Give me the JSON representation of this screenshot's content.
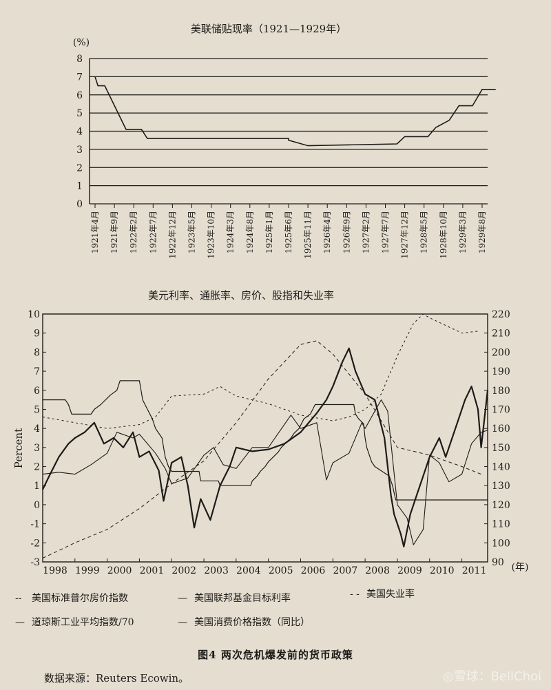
{
  "chart_data": [
    {
      "type": "line",
      "title": "美联储贴现率（1921—1929年）",
      "ylabel": "(%)",
      "ylim": [
        0,
        8
      ],
      "yticks": [
        0,
        1,
        2,
        3,
        4,
        5,
        6,
        7,
        8
      ],
      "categories": [
        "1921年4月",
        "1921年9月",
        "1922年2月",
        "1922年7月",
        "1922年12月",
        "1923年5月",
        "1923年10月",
        "1924年3月",
        "1924年8月",
        "1925年1月",
        "1925年6月",
        "1925年11月",
        "1926年4月",
        "1926年9月",
        "1927年2月",
        "1927年7月",
        "1927年12月",
        "1928年5月",
        "1928年10月",
        "1929年3月",
        "1929年8月"
      ],
      "series": [
        {
          "name": "贴现率",
          "points": [
            [
              0,
              7.0
            ],
            [
              0.15,
              6.5
            ],
            [
              0.5,
              6.5
            ],
            [
              1.6,
              4.1
            ],
            [
              2.4,
              4.1
            ],
            [
              2.7,
              3.6
            ],
            [
              10.0,
              3.6
            ],
            [
              10.0,
              3.5
            ],
            [
              11.0,
              3.2
            ],
            [
              15.6,
              3.3
            ],
            [
              16.0,
              3.7
            ],
            [
              17.2,
              3.7
            ],
            [
              17.6,
              4.2
            ],
            [
              18.3,
              4.6
            ],
            [
              18.8,
              5.4
            ],
            [
              19.5,
              5.4
            ],
            [
              20.0,
              6.3
            ],
            [
              20.7,
              6.3
            ]
          ]
        }
      ]
    },
    {
      "type": "line",
      "title": "美元利率、通胀率、房价、股指和失业率",
      "ylabel": "Percent",
      "xlabel": "(年)",
      "ylim": [
        -3,
        10
      ],
      "y2lim": [
        90,
        220
      ],
      "xlim": [
        1998,
        2011.8
      ],
      "xticks": [
        "1998",
        "1999",
        "2000",
        "2001",
        "2002",
        "2003",
        "2004",
        "2005",
        "2006",
        "2007",
        "2008",
        "2009",
        "2010",
        "2011"
      ],
      "yticks_left": [
        -3,
        -2,
        -1,
        0,
        1,
        2,
        3,
        4,
        5,
        6,
        7,
        8,
        9,
        10
      ],
      "yticks_right": [
        90,
        100,
        110,
        120,
        130,
        140,
        150,
        160,
        170,
        180,
        190,
        200,
        210,
        220
      ],
      "series": [
        {
          "name": "美国标准普尔房价指数",
          "axis": "right",
          "points": [
            [
              1998,
              92
            ],
            [
              1999,
              100
            ],
            [
              2000,
              107
            ],
            [
              2001,
              118
            ],
            [
              2002,
              131
            ],
            [
              2003,
              143
            ],
            [
              2004,
              163
            ],
            [
              2005,
              186
            ],
            [
              2006,
              204
            ],
            [
              2006.5,
              206
            ],
            [
              2007,
              199
            ],
            [
              2008,
              178
            ],
            [
              2009,
              150
            ],
            [
              2010,
              146
            ],
            [
              2011,
              140
            ],
            [
              2011.6,
              136
            ]
          ]
        },
        {
          "name": "美国联邦基金目标利率",
          "axis": "left",
          "points": [
            [
              1998,
              5.5
            ],
            [
              1998.7,
              5.5
            ],
            [
              1998.8,
              5.25
            ],
            [
              1998.9,
              4.75
            ],
            [
              1999.5,
              4.75
            ],
            [
              1999.6,
              5.0
            ],
            [
              1999.8,
              5.25
            ],
            [
              2000.1,
              5.75
            ],
            [
              2000.3,
              6.0
            ],
            [
              2000.4,
              6.5
            ],
            [
              2001.0,
              6.5
            ],
            [
              2001.05,
              6.0
            ],
            [
              2001.1,
              5.5
            ],
            [
              2001.25,
              5.0
            ],
            [
              2001.4,
              4.5
            ],
            [
              2001.5,
              4.0
            ],
            [
              2001.6,
              3.75
            ],
            [
              2001.7,
              3.5
            ],
            [
              2001.75,
              3.0
            ],
            [
              2001.8,
              2.5
            ],
            [
              2001.9,
              2.0
            ],
            [
              2002.0,
              1.75
            ],
            [
              2002.85,
              1.75
            ],
            [
              2002.9,
              1.25
            ],
            [
              2003.45,
              1.25
            ],
            [
              2003.5,
              1.0
            ],
            [
              2004.45,
              1.0
            ],
            [
              2004.5,
              1.25
            ],
            [
              2004.65,
              1.5
            ],
            [
              2004.75,
              1.75
            ],
            [
              2004.9,
              2.0
            ],
            [
              2005.0,
              2.25
            ],
            [
              2005.15,
              2.5
            ],
            [
              2005.3,
              2.75
            ],
            [
              2005.4,
              3.0
            ],
            [
              2005.55,
              3.25
            ],
            [
              2005.7,
              3.5
            ],
            [
              2005.8,
              3.75
            ],
            [
              2005.95,
              4.0
            ],
            [
              2006.1,
              4.5
            ],
            [
              2006.3,
              4.75
            ],
            [
              2006.45,
              5.25
            ],
            [
              2007.65,
              5.25
            ],
            [
              2007.7,
              4.75
            ],
            [
              2007.8,
              4.5
            ],
            [
              2007.95,
              4.25
            ],
            [
              2008.0,
              3.5
            ],
            [
              2008.05,
              3.0
            ],
            [
              2008.2,
              2.25
            ],
            [
              2008.3,
              2.0
            ],
            [
              2008.75,
              1.5
            ],
            [
              2008.85,
              1.0
            ],
            [
              2008.95,
              0.25
            ],
            [
              2011.8,
              0.25
            ]
          ]
        },
        {
          "name": "美国失业率",
          "axis": "left",
          "points": [
            [
              1998,
              4.6
            ],
            [
              1999,
              4.3
            ],
            [
              2000,
              4.0
            ],
            [
              2001,
              4.2
            ],
            [
              2001.5,
              4.6
            ],
            [
              2002,
              5.7
            ],
            [
              2003,
              5.8
            ],
            [
              2003.5,
              6.2
            ],
            [
              2004,
              5.7
            ],
            [
              2005,
              5.3
            ],
            [
              2006,
              4.7
            ],
            [
              2007,
              4.4
            ],
            [
              2007.5,
              4.6
            ],
            [
              2008,
              5.0
            ],
            [
              2008.5,
              5.8
            ],
            [
              2009,
              7.8
            ],
            [
              2009.5,
              9.5
            ],
            [
              2009.8,
              10.0
            ],
            [
              2010,
              9.8
            ],
            [
              2010.5,
              9.4
            ],
            [
              2011,
              9.0
            ],
            [
              2011.5,
              9.1
            ]
          ]
        },
        {
          "name": "道琼斯工业平均指数/70",
          "axis": "left",
          "points": [
            [
              1998,
              0.8
            ],
            [
              1998.2,
              1.5
            ],
            [
              1998.5,
              2.5
            ],
            [
              1998.8,
              3.2
            ],
            [
              1999.0,
              3.5
            ],
            [
              1999.3,
              3.8
            ],
            [
              1999.6,
              4.3
            ],
            [
              1999.9,
              3.2
            ],
            [
              2000.2,
              3.5
            ],
            [
              2000.5,
              3.0
            ],
            [
              2000.8,
              3.8
            ],
            [
              2001.0,
              2.5
            ],
            [
              2001.3,
              2.8
            ],
            [
              2001.6,
              1.8
            ],
            [
              2001.75,
              0.2
            ],
            [
              2002.0,
              2.2
            ],
            [
              2002.3,
              2.5
            ],
            [
              2002.5,
              1.0
            ],
            [
              2002.7,
              -1.2
            ],
            [
              2002.9,
              0.3
            ],
            [
              2003.2,
              -0.8
            ],
            [
              2003.5,
              1.0
            ],
            [
              2003.8,
              2.0
            ],
            [
              2004.0,
              3.0
            ],
            [
              2004.5,
              2.8
            ],
            [
              2005.0,
              2.9
            ],
            [
              2005.5,
              3.2
            ],
            [
              2006.0,
              3.8
            ],
            [
              2006.5,
              4.8
            ],
            [
              2006.8,
              5.5
            ],
            [
              2007.0,
              6.2
            ],
            [
              2007.3,
              7.5
            ],
            [
              2007.5,
              8.2
            ],
            [
              2007.7,
              7.0
            ],
            [
              2008.0,
              5.8
            ],
            [
              2008.3,
              5.5
            ],
            [
              2008.6,
              3.5
            ],
            [
              2008.8,
              0.5
            ],
            [
              2008.9,
              -0.5
            ],
            [
              2009.1,
              -1.5
            ],
            [
              2009.2,
              -2.2
            ],
            [
              2009.4,
              -0.5
            ],
            [
              2009.6,
              0.5
            ],
            [
              2009.8,
              1.5
            ],
            [
              2010.0,
              2.5
            ],
            [
              2010.3,
              3.5
            ],
            [
              2010.5,
              2.5
            ],
            [
              2010.7,
              3.5
            ],
            [
              2010.9,
              4.5
            ],
            [
              2011.1,
              5.5
            ],
            [
              2011.3,
              6.2
            ],
            [
              2011.5,
              5.0
            ],
            [
              2011.6,
              3.0
            ],
            [
              2011.7,
              4.5
            ],
            [
              2011.8,
              6.0
            ]
          ]
        },
        {
          "name": "美国消费价格指数（同比）",
          "axis": "left",
          "points": [
            [
              1998,
              1.6
            ],
            [
              1998.5,
              1.7
            ],
            [
              1999,
              1.6
            ],
            [
              1999.5,
              2.1
            ],
            [
              2000,
              2.7
            ],
            [
              2000.3,
              3.8
            ],
            [
              2000.8,
              3.5
            ],
            [
              2001,
              3.7
            ],
            [
              2001.5,
              2.7
            ],
            [
              2001.8,
              1.9
            ],
            [
              2002,
              1.1
            ],
            [
              2002.5,
              1.4
            ],
            [
              2003,
              2.6
            ],
            [
              2003.3,
              3.0
            ],
            [
              2003.6,
              2.1
            ],
            [
              2004,
              1.9
            ],
            [
              2004.5,
              3.0
            ],
            [
              2005,
              3.0
            ],
            [
              2005.7,
              4.7
            ],
            [
              2006,
              4.0
            ],
            [
              2006.5,
              4.3
            ],
            [
              2006.8,
              1.3
            ],
            [
              2007,
              2.2
            ],
            [
              2007.5,
              2.7
            ],
            [
              2007.9,
              4.3
            ],
            [
              2008,
              4.0
            ],
            [
              2008.5,
              5.5
            ],
            [
              2008.7,
              4.9
            ],
            [
              2009.0,
              0.0
            ],
            [
              2009.3,
              -0.7
            ],
            [
              2009.5,
              -2.1
            ],
            [
              2009.8,
              -1.3
            ],
            [
              2010.0,
              2.6
            ],
            [
              2010.3,
              2.2
            ],
            [
              2010.6,
              1.2
            ],
            [
              2011.0,
              1.6
            ],
            [
              2011.3,
              3.2
            ],
            [
              2011.6,
              3.8
            ],
            [
              2011.8,
              3.9
            ]
          ]
        }
      ]
    }
  ],
  "legend": [
    {
      "symbol": "--",
      "label": "美国标准普尔房价指数"
    },
    {
      "symbol": "—",
      "label": "美国联邦基金目标利率"
    },
    {
      "symbol": "- -",
      "label": "美国失业率"
    },
    {
      "symbol": "—",
      "label": "道琼斯工业平均指数/70"
    },
    {
      "symbol": "—",
      "label": "美国消费价格指数（同比）"
    }
  ],
  "caption": "图4  两次危机爆发前的货币政策",
  "source": "数据来源：Reuters Ecowin。",
  "watermark": "◎雪球：BellChoi"
}
